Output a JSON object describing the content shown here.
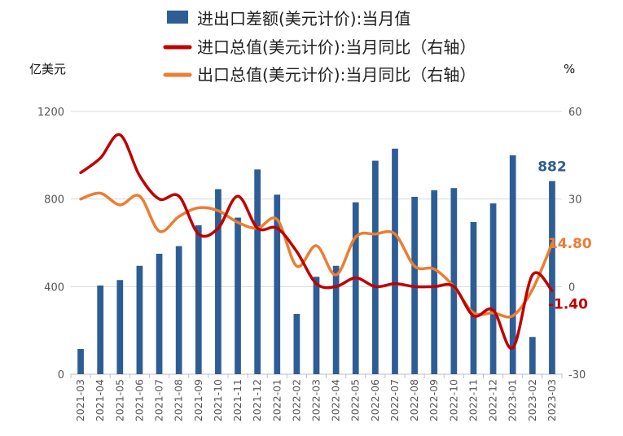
{
  "chart_data": {
    "type": "bar+line",
    "left_unit": "亿美元",
    "right_unit": "%",
    "y_left_ticks": [
      "0",
      "400",
      "800",
      "1200"
    ],
    "y_right_ticks": [
      "-30",
      "0",
      "30",
      "60"
    ],
    "ylim_left": [
      0,
      1200
    ],
    "ylim_right": [
      -30,
      60
    ],
    "grid": "horizontal",
    "legend_position": "top",
    "categories": [
      "2021-03",
      "2021-04",
      "2021-05",
      "2021-06",
      "2021-07",
      "2021-08",
      "2021-09",
      "2021-10",
      "2021-11",
      "2021-12",
      "2022-01",
      "2022-02",
      "2022-03",
      "2022-04",
      "2022-05",
      "2022-06",
      "2022-07",
      "2022-08",
      "2022-09",
      "2022-10",
      "2022-11",
      "2022-12",
      "2023-01",
      "2023-02",
      "2023-03"
    ],
    "series": [
      {
        "name": "进出口差额(美元计价):当月值",
        "type": "bar",
        "axis": "left",
        "color": "#2e5d96",
        "values": [
          115,
          405,
          430,
          495,
          550,
          585,
          680,
          845,
          715,
          935,
          820,
          275,
          445,
          495,
          785,
          975,
          1030,
          810,
          840,
          850,
          695,
          780,
          1000,
          170,
          882
        ],
        "last_label": "882"
      },
      {
        "name": "进口总值(美元计价):当月同比（右轴）",
        "type": "line",
        "axis": "right",
        "color": "#c00000",
        "values": [
          39,
          44,
          52,
          38,
          30,
          31,
          18,
          20,
          31,
          20,
          20,
          12,
          1,
          0,
          3,
          0,
          1,
          0,
          0,
          0,
          -10,
          -8,
          -21,
          4,
          -1.4
        ],
        "last_label": "-1.40"
      },
      {
        "name": "出口总值(美元计价):当月同比（右轴）",
        "type": "line",
        "axis": "right",
        "color": "#ed7d31",
        "values": [
          30,
          32,
          28,
          31,
          19,
          24,
          27,
          26,
          22,
          20,
          23,
          7,
          14,
          4,
          17,
          18,
          18,
          7,
          6,
          0,
          -9,
          -9,
          -10,
          -1,
          14.8
        ],
        "last_label": "14.80"
      }
    ]
  }
}
